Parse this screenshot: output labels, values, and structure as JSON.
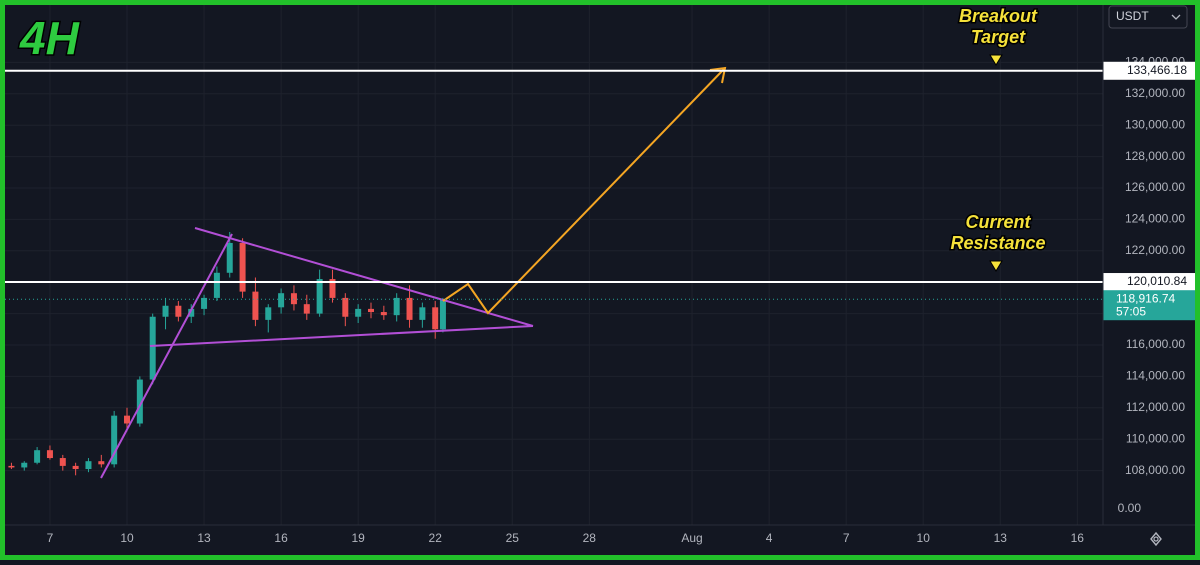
{
  "chart_data": {
    "type": "candlestick",
    "timeframe_label": "4H",
    "currency": "USDT",
    "candles": {
      "x": [
        5.5,
        6.0,
        6.5,
        7.0,
        7.5,
        8.0,
        8.5,
        9.0,
        9.5,
        10.0,
        10.5,
        11.0,
        11.5,
        12.0,
        12.5,
        13.0,
        13.5,
        14.0,
        14.5,
        15.0,
        15.5,
        16.0,
        16.5,
        17.0,
        17.5,
        18.0,
        18.5,
        19.0,
        19.5,
        20.0,
        20.5,
        21.0,
        21.5,
        22.0,
        22.3
      ],
      "open": [
        108300,
        108200,
        108500,
        109300,
        108800,
        108300,
        108100,
        108600,
        108400,
        111500,
        111000,
        113800,
        117800,
        118500,
        117800,
        118300,
        119000,
        120600,
        122500,
        119400,
        117600,
        118400,
        119300,
        118600,
        118000,
        120200,
        119000,
        117800,
        118300,
        118100,
        117900,
        119000,
        117600,
        118400,
        117000
      ],
      "high": [
        108500,
        108600,
        109500,
        109600,
        109000,
        108500,
        108800,
        109000,
        111800,
        112000,
        114000,
        118000,
        119000,
        118800,
        118600,
        119200,
        121000,
        123200,
        122800,
        120300,
        118600,
        119600,
        119800,
        119200,
        120800,
        120800,
        119300,
        118600,
        118700,
        118500,
        119300,
        119800,
        118700,
        118800,
        119000
      ],
      "low": [
        108100,
        108000,
        108400,
        108700,
        108000,
        107700,
        107900,
        108200,
        108200,
        110500,
        110800,
        113500,
        117000,
        117500,
        117400,
        117900,
        118800,
        120300,
        119000,
        117200,
        116800,
        118000,
        118200,
        117600,
        117800,
        118700,
        117200,
        117400,
        117700,
        117600,
        117500,
        117100,
        117100,
        116400,
        116800
      ],
      "close": [
        108200,
        108500,
        109300,
        108800,
        108300,
        108100,
        108600,
        108400,
        111500,
        111000,
        113800,
        117800,
        118500,
        117800,
        118300,
        119000,
        120600,
        122500,
        119400,
        117600,
        118400,
        119300,
        118600,
        118000,
        120200,
        119000,
        117800,
        118300,
        118100,
        117900,
        119000,
        117600,
        118400,
        117000,
        118916.74
      ]
    },
    "up_color": "#26a69a",
    "down_color": "#ef5350",
    "xlim": [
      5.25,
      48
    ],
    "xticks": [
      7,
      10,
      13,
      16,
      19,
      22,
      25,
      28,
      {
        "value": 32,
        "label": "Aug"
      },
      {
        "value": 35,
        "label": "4"
      },
      {
        "value": 38,
        "label": "7"
      },
      {
        "value": 41,
        "label": "10"
      },
      {
        "value": 44,
        "label": "13"
      },
      {
        "value": 47,
        "label": "16"
      }
    ],
    "ylim": [
      106000,
      136000
    ],
    "yticks": [
      {
        "value": 108000,
        "label": "108,000.00"
      },
      {
        "value": 110000,
        "label": "110,000.00"
      },
      {
        "value": 112000,
        "label": "112,000.00"
      },
      {
        "value": 114000,
        "label": "114,000.00"
      },
      {
        "value": 116000,
        "label": "116,000.00"
      },
      {
        "value": 118000,
        "label": "118,000.00"
      },
      {
        "value": 120000,
        "label": "120,000.00"
      },
      {
        "value": 122000,
        "label": "122,000.00"
      },
      {
        "value": 124000,
        "label": "124,000.00"
      },
      {
        "value": 126000,
        "label": "126,000.00"
      },
      {
        "value": 128000,
        "label": "128,000.00"
      },
      {
        "value": 130000,
        "label": "130,000.00"
      },
      {
        "value": 132000,
        "label": "132,000.00"
      },
      {
        "value": 134000,
        "label": "134,000.00"
      }
    ],
    "lower_pane_tick": {
      "value": 0,
      "label": "0.00"
    },
    "grid": true,
    "levels": [
      {
        "value": 133466.18,
        "label": "133,466.18"
      },
      {
        "value": 120010.84,
        "label": "120,010.84"
      }
    ],
    "last_price": {
      "value": 118916.74,
      "label": "118,916.74",
      "countdown": "57:05"
    },
    "annotations": [
      {
        "lines": [
          "Breakout",
          "Target"
        ]
      },
      {
        "lines": [
          "Current",
          "Resistance"
        ]
      }
    ]
  }
}
